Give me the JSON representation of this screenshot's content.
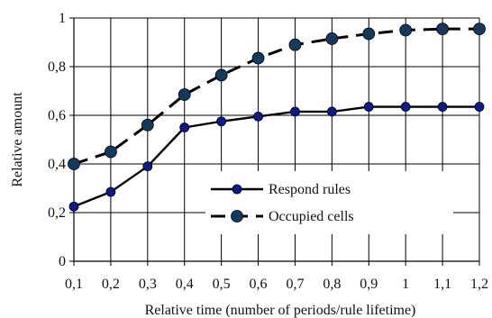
{
  "chart_data": {
    "type": "line",
    "title": "",
    "xlabel": "Relative time (number of periods/rule lifetime)",
    "ylabel": "Relative amount",
    "x": [
      "0,1",
      "0,2",
      "0,3",
      "0,4",
      "0,5",
      "0,6",
      "0,7",
      "0,8",
      "0,9",
      "1",
      "1,1",
      "1,2"
    ],
    "x_values": [
      0.1,
      0.2,
      0.3,
      0.4,
      0.5,
      0.6,
      0.7,
      0.8,
      0.9,
      1.0,
      1.1,
      1.2
    ],
    "ylim": [
      0,
      1
    ],
    "yticks": [
      0,
      0.2,
      0.4,
      0.6,
      0.8,
      1
    ],
    "ytick_labels": [
      "0",
      "0,2",
      "0,4",
      "0,6",
      "0,8",
      "1"
    ],
    "grid": true,
    "legend_position": "center-right",
    "series": [
      {
        "name": "Respond rules",
        "line_style": "solid",
        "color": "#000000",
        "marker_color": "#0b1a8c",
        "values": [
          0.225,
          0.285,
          0.39,
          0.55,
          0.575,
          0.595,
          0.615,
          0.615,
          0.635,
          0.635,
          0.635,
          0.635
        ]
      },
      {
        "name": "Occupied cells",
        "line_style": "dashed",
        "color": "#000000",
        "marker_color": "#123a5e",
        "values": [
          0.4,
          0.45,
          0.56,
          0.685,
          0.765,
          0.835,
          0.89,
          0.915,
          0.935,
          0.95,
          0.955,
          0.955
        ]
      }
    ]
  }
}
